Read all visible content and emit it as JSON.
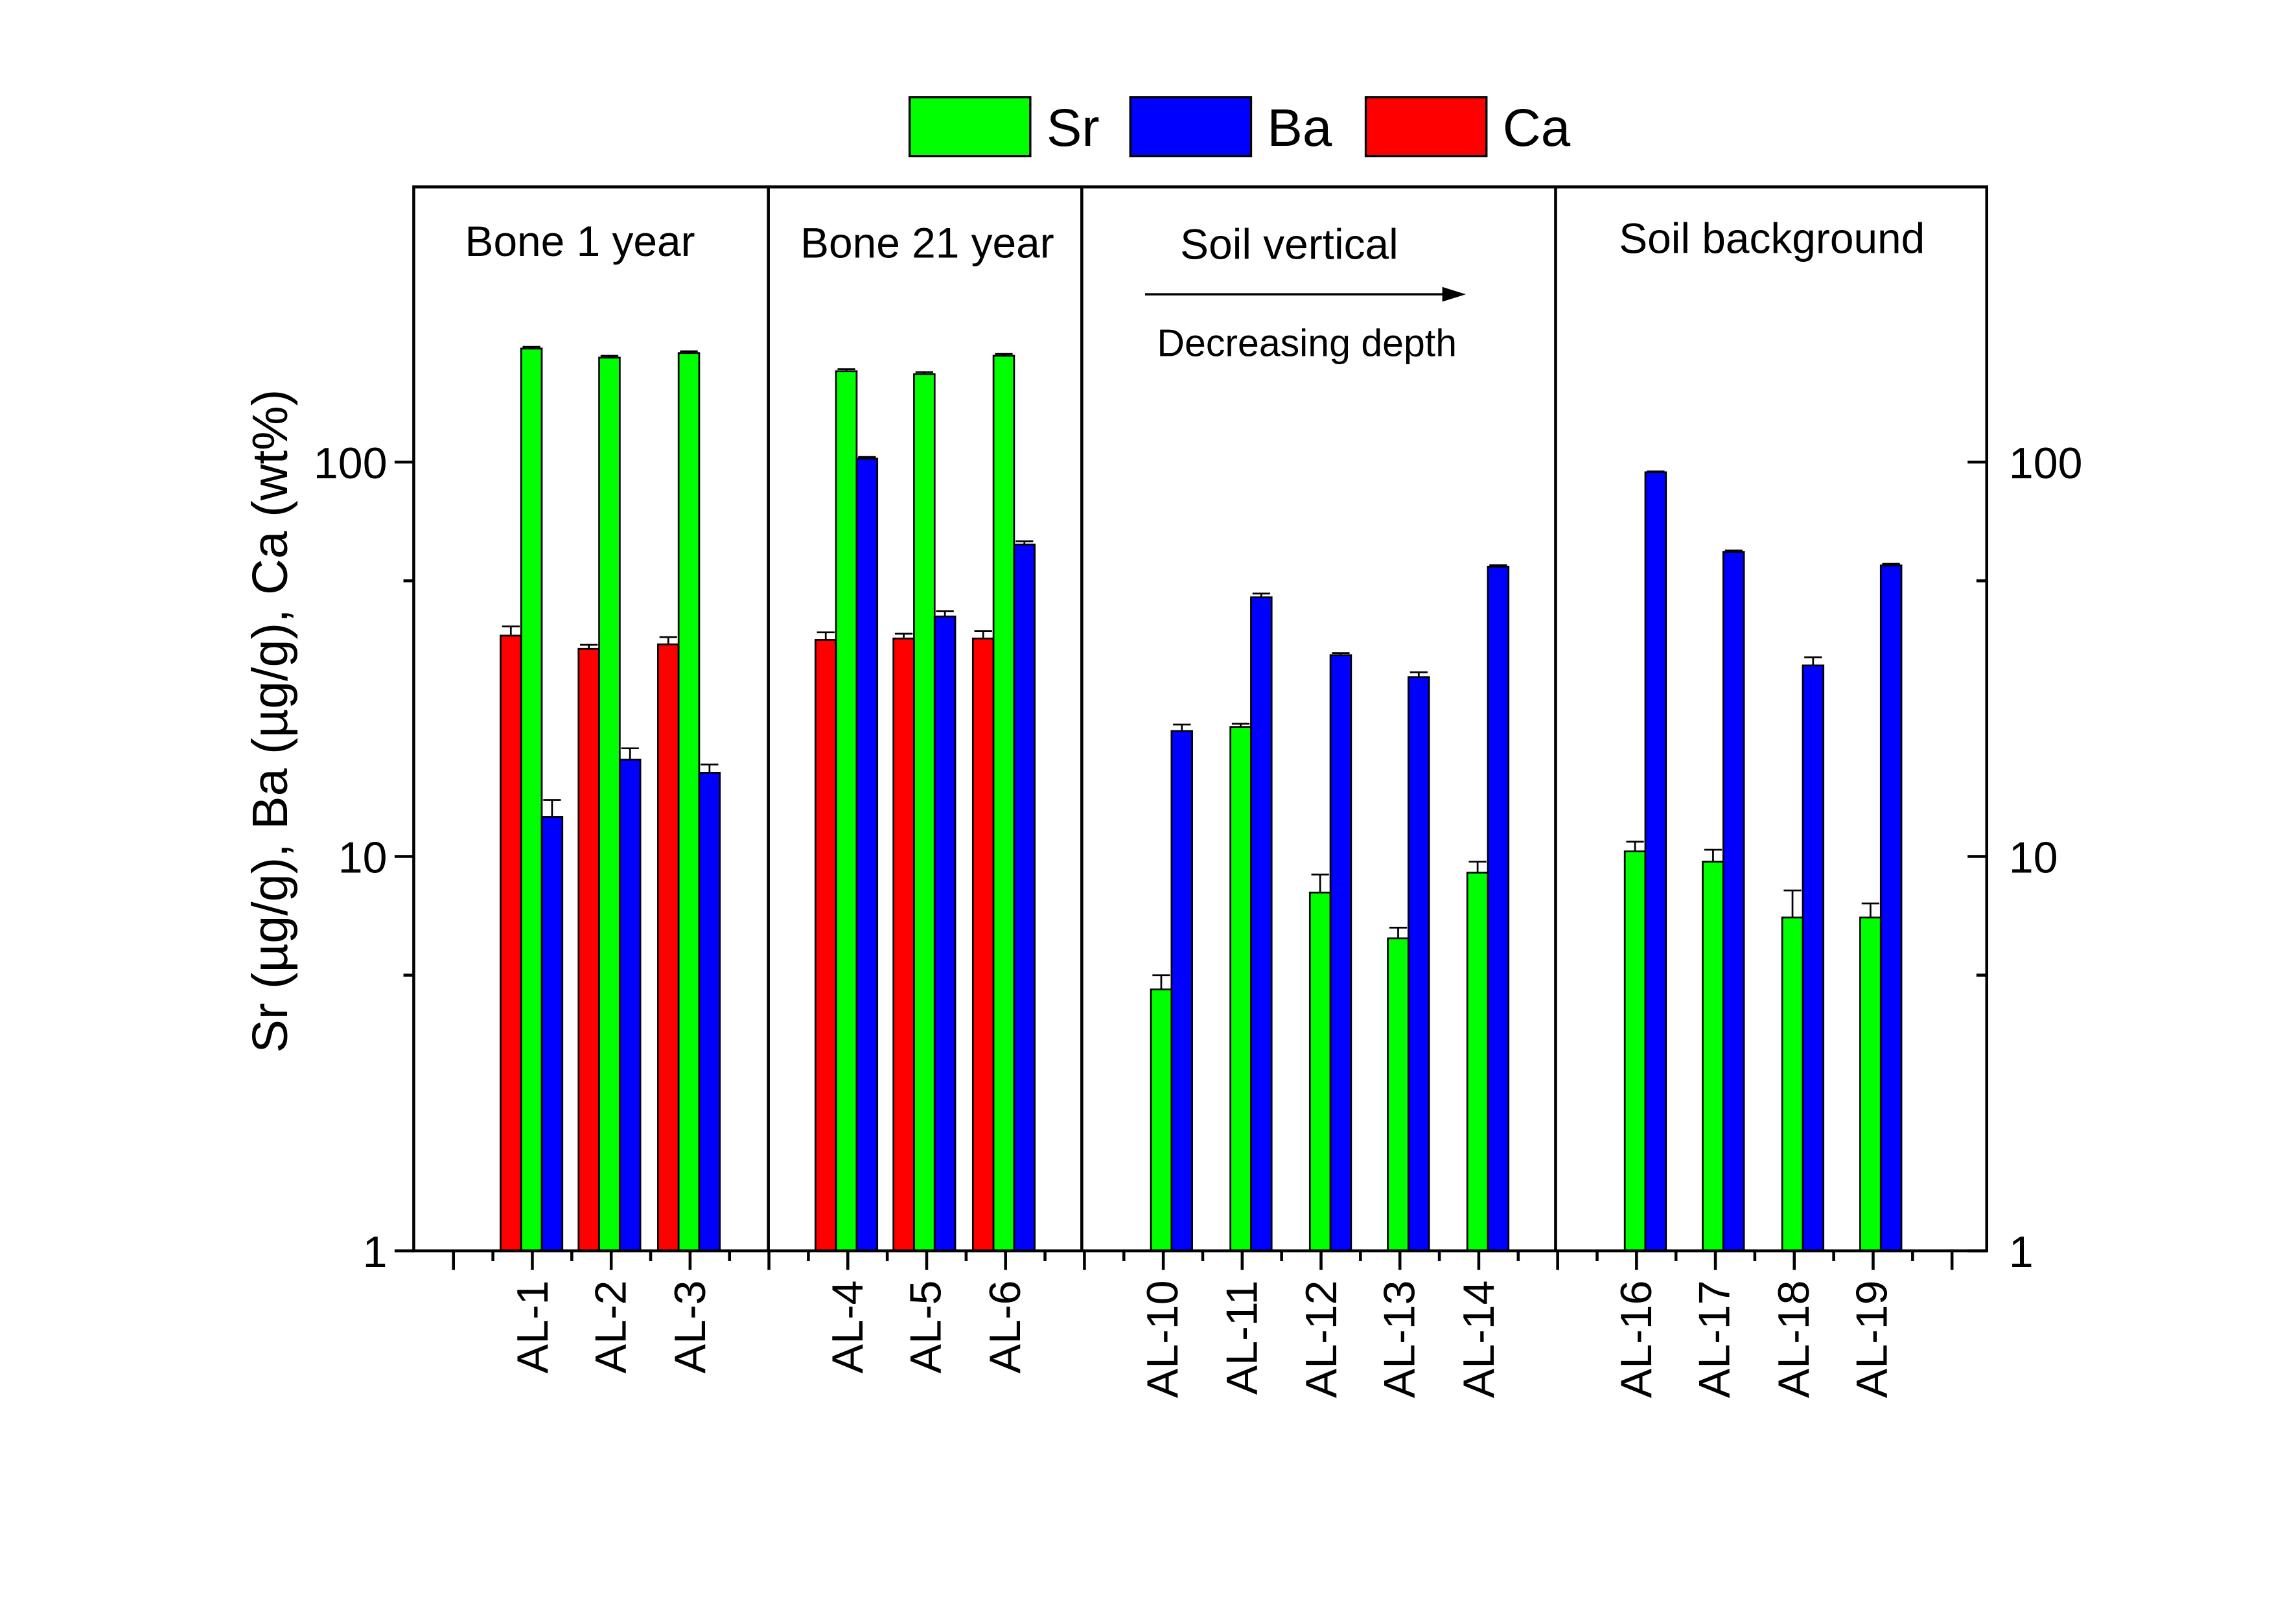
{
  "chart_data": {
    "type": "bar",
    "ylabel": "Sr (µg/g), Ba (µg/g), Ca (wt%)",
    "yscale": "log",
    "ylim": [
      1,
      400
    ],
    "yticks": [
      "1",
      "10",
      "100"
    ],
    "legend": {
      "placement": "top",
      "entries": [
        "Sr",
        "Ba",
        "Ca"
      ]
    },
    "colors": {
      "Sr": "#00ff00",
      "Ba": "#0000ff",
      "Ca": "#ff0000"
    },
    "groups": [
      {
        "label": "Bone 1 year",
        "categories": [
          "AL-1",
          "AL-2",
          "AL-3"
        ]
      },
      {
        "label": "Bone 21 year",
        "categories": [
          "AL-4",
          "AL-5",
          "AL-6"
        ]
      },
      {
        "label": "Soil vertical",
        "annotation": "Decreasing depth",
        "categories": [
          "AL-10",
          "AL-11",
          "AL-12",
          "AL-13",
          "AL-14"
        ]
      },
      {
        "label": "Soil background",
        "categories": [
          "AL-16",
          "AL-17",
          "AL-18",
          "AL-19"
        ]
      }
    ],
    "categories": [
      "AL-1",
      "AL-2",
      "AL-3",
      "AL-4",
      "AL-5",
      "AL-6",
      "AL-10",
      "AL-11",
      "AL-12",
      "AL-13",
      "AL-14",
      "AL-16",
      "AL-17",
      "AL-18",
      "AL-19"
    ],
    "series": [
      {
        "name": "Ca",
        "values": [
          36.3,
          33.6,
          34.5,
          35.4,
          35.7,
          35.7,
          null,
          null,
          null,
          null,
          null,
          null,
          null,
          null,
          null
        ],
        "errors": [
          2,
          0.8,
          1.5,
          1.6,
          1,
          1.6,
          null,
          null,
          null,
          null,
          null,
          null,
          null,
          null,
          null
        ]
      },
      {
        "name": "Sr",
        "values": [
          194,
          184,
          189,
          170,
          167,
          186,
          4.6,
          21.3,
          8.1,
          6.2,
          9.1,
          10.3,
          9.7,
          7.0,
          7.0
        ],
        "errors": [
          2,
          2,
          2,
          2,
          2,
          2,
          0.4,
          0.4,
          0.9,
          0.4,
          0.6,
          0.6,
          0.7,
          1.2,
          0.6
        ]
      },
      {
        "name": "Ba",
        "values": [
          12.6,
          17.6,
          16.3,
          102,
          40.6,
          61.8,
          20.8,
          45.4,
          32.4,
          28.5,
          54.3,
          94.2,
          59.2,
          30.5,
          54.7
        ],
        "errors": [
          1.3,
          1.2,
          0.8,
          1,
          1.3,
          1.2,
          0.8,
          1,
          0.4,
          0.8,
          0.5,
          0.5,
          0.5,
          1.5,
          0.5
        ]
      }
    ]
  }
}
